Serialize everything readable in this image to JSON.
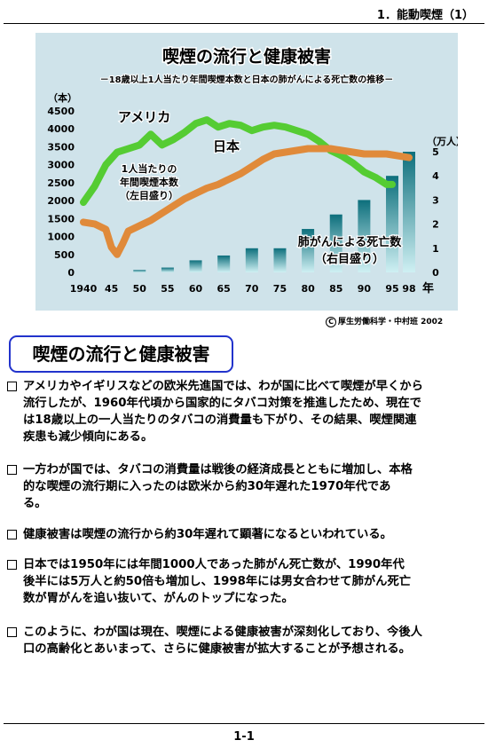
{
  "header": "1．能動喫煙（1）",
  "figure": {
    "title": "喫煙の流行と健康被害",
    "subtitle": "－18歳以上1人当たり年間喫煙本数と日本の肺がんによる死亡数の推移－",
    "left_unit": "（本）",
    "right_unit": "（万人）",
    "x_unit": "年",
    "label_usa": "アメリカ",
    "label_japan": "日本",
    "cig_note": [
      "1人当たりの",
      "年間喫煙本数",
      "（左目盛り）"
    ],
    "death_note": [
      "肺がんによる死亡数",
      "（右目盛り）"
    ],
    "colors": {
      "usa": "#55cc33",
      "japan": "#e08a3a",
      "bars_dark": "#0d6f7c",
      "bars_light": "#cff0f3",
      "background": "#cfe3ea"
    }
  },
  "credit": "厚生労働科学・中村班 2002",
  "credit_symbol": "C",
  "section_title": "喫煙の流行と健康被害",
  "bullets": [
    {
      "lines": [
        "アメリカやイギリスなどの欧米先進国では、わが国に比べて喫煙が早くから",
        "流行したが、1960年代頃から国家的にタバコ対策を推進したため、現在で",
        "は18歳以上の一人当たりのタバコの消費量も下がり、その結果、喫煙関連",
        "疾患も減少傾向にある。"
      ]
    },
    {
      "lines": [
        "一方わが国では、タバコの消費量は戦後の経済成長とともに増加し、本格",
        "的な喫煙の流行期に入ったのは欧米から約30年遅れた1970年代であ",
        "る。"
      ]
    },
    {
      "lines": [
        "健康被害は喫煙の流行から約30年遅れて顕著になるといわれている。"
      ]
    },
    {
      "lines": [
        "日本では1950年には年間1000人であった肺がん死亡数が、1990年代",
        "後半には5万人と約50倍も増加し、1998年には男女合わせて肺がん死亡",
        "数が胃がんを追い抜いて、がんのトップになった。"
      ]
    },
    {
      "lines": [
        "このように、わが国は現在、喫煙による健康被害が深刻化しており、今後人",
        "口の高齢化とあいまって、さらに健康被害が拡大することが予想される。"
      ]
    }
  ],
  "page_number": "1-1",
  "chart_data": {
    "type": "line",
    "title": "喫煙の流行と健康被害",
    "x_tick_labels": [
      "1940",
      "45",
      "50",
      "55",
      "60",
      "65",
      "70",
      "75",
      "80",
      "85",
      "90",
      "95",
      "98"
    ],
    "y_left": {
      "label": "（本）",
      "range": [
        0,
        4500
      ],
      "ticks": [
        0,
        500,
        1000,
        1500,
        2000,
        2500,
        3000,
        3500,
        4000,
        4500
      ]
    },
    "y_right": {
      "label": "（万人）",
      "range": [
        0,
        5
      ],
      "ticks": [
        0,
        1,
        2,
        3,
        4,
        5
      ]
    },
    "series": [
      {
        "name": "アメリカ",
        "axis": "left",
        "x": [
          1940,
          1942,
          1944,
          1946,
          1948,
          1950,
          1952,
          1954,
          1956,
          1958,
          1960,
          1962,
          1964,
          1966,
          1968,
          1970,
          1972,
          1974,
          1976,
          1978,
          1980,
          1982,
          1984,
          1986,
          1988,
          1990,
          1992,
          1994,
          1995
        ],
        "y": [
          1950,
          2400,
          3000,
          3350,
          3450,
          3550,
          3850,
          3550,
          3700,
          3900,
          4150,
          4250,
          4050,
          4150,
          4100,
          3950,
          4050,
          4100,
          4050,
          3950,
          3850,
          3650,
          3400,
          3250,
          3050,
          2800,
          2650,
          2450,
          2450
        ]
      },
      {
        "name": "日本",
        "axis": "left",
        "x": [
          1940,
          1942,
          1944,
          1945,
          1946,
          1947,
          1948,
          1950,
          1952,
          1954,
          1956,
          1958,
          1960,
          1962,
          1964,
          1966,
          1968,
          1970,
          1972,
          1974,
          1976,
          1978,
          1980,
          1982,
          1984,
          1986,
          1988,
          1990,
          1992,
          1994,
          1996,
          1998
        ],
        "y": [
          1400,
          1350,
          1200,
          700,
          500,
          800,
          1150,
          1300,
          1450,
          1650,
          1850,
          2050,
          2200,
          2350,
          2450,
          2600,
          2750,
          2950,
          3150,
          3300,
          3350,
          3400,
          3450,
          3450,
          3450,
          3400,
          3350,
          3300,
          3300,
          3300,
          3250,
          3200
        ]
      }
    ],
    "bars": {
      "name": "肺がんによる死亡数",
      "axis": "right",
      "x": [
        1950,
        1955,
        1960,
        1965,
        1970,
        1975,
        1980,
        1985,
        1990,
        1995,
        1998
      ],
      "values": [
        0.1,
        0.2,
        0.5,
        0.7,
        1.0,
        1.0,
        1.8,
        2.4,
        3.0,
        4.0,
        5.0
      ]
    }
  }
}
